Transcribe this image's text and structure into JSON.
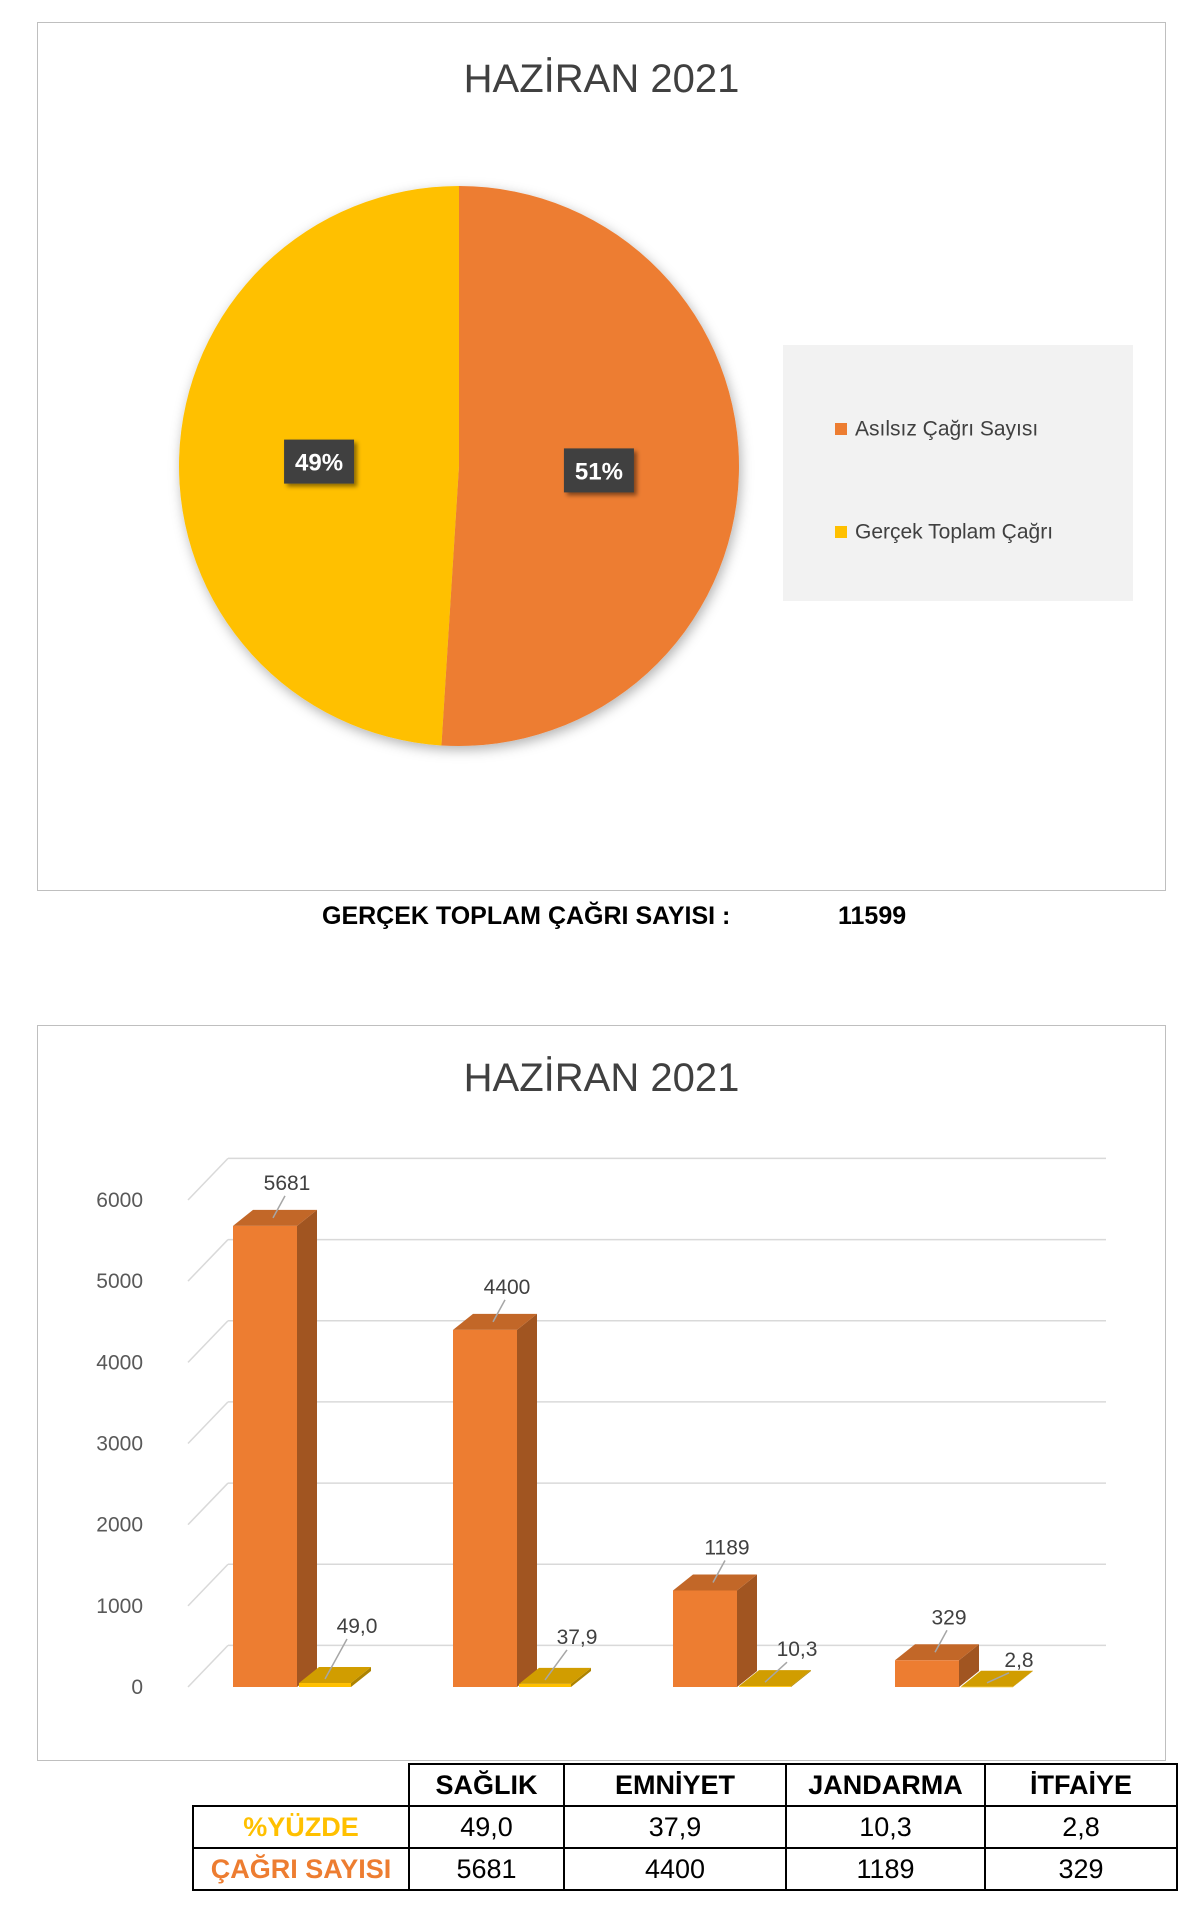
{
  "colors": {
    "orange": "#ED7D31",
    "yellow": "#FFC000",
    "orange_dark": "#B75C1E",
    "yellow_dark": "#C79200",
    "label_box": "#404040"
  },
  "chart_data": [
    {
      "type": "pie",
      "title": "HAZİRAN 2021",
      "slices": [
        {
          "label": "Asılsız Çağrı Sayısı",
          "value": 51,
          "display": "51%"
        },
        {
          "label": "Gerçek Toplam Çağrı",
          "value": 49,
          "display": "49%"
        }
      ],
      "legend": "right"
    },
    {
      "type": "bar",
      "title": "HAZİRAN 2021",
      "categories": [
        "SAĞLIK",
        "EMNİYET",
        "JANDARMA",
        "İTFAİYE"
      ],
      "series": [
        {
          "name": "ÇAĞRI SAYISI",
          "values": [
            5681,
            4400,
            1189,
            329
          ],
          "labels": [
            "5681",
            "4400",
            "1189",
            "329"
          ]
        },
        {
          "name": "%YÜZDE",
          "values": [
            49.0,
            37.9,
            10.3,
            2.8
          ],
          "labels": [
            "49,0",
            "37,9",
            "10,3",
            "2,8"
          ]
        }
      ],
      "ylim": [
        0,
        6000
      ],
      "yticks": [
        "0",
        "1000",
        "2000",
        "3000",
        "4000",
        "5000",
        "6000"
      ],
      "grid": true,
      "legend": "none"
    }
  ],
  "summary": {
    "label": "GERÇEK TOPLAM ÇAĞRI SAYISI :",
    "value": "11599"
  },
  "table": {
    "headers": [
      "SAĞLIK",
      "EMNİYET",
      "JANDARMA",
      "İTFAİYE"
    ],
    "rows": [
      {
        "label": "%YÜZDE",
        "color": "#FFC000",
        "values": [
          "49,0",
          "37,9",
          "10,3",
          "2,8"
        ]
      },
      {
        "label": "ÇAĞRI SAYISI",
        "color": "#ED7D31",
        "values": [
          "5681",
          "4400",
          "1189",
          "329"
        ]
      }
    ]
  }
}
